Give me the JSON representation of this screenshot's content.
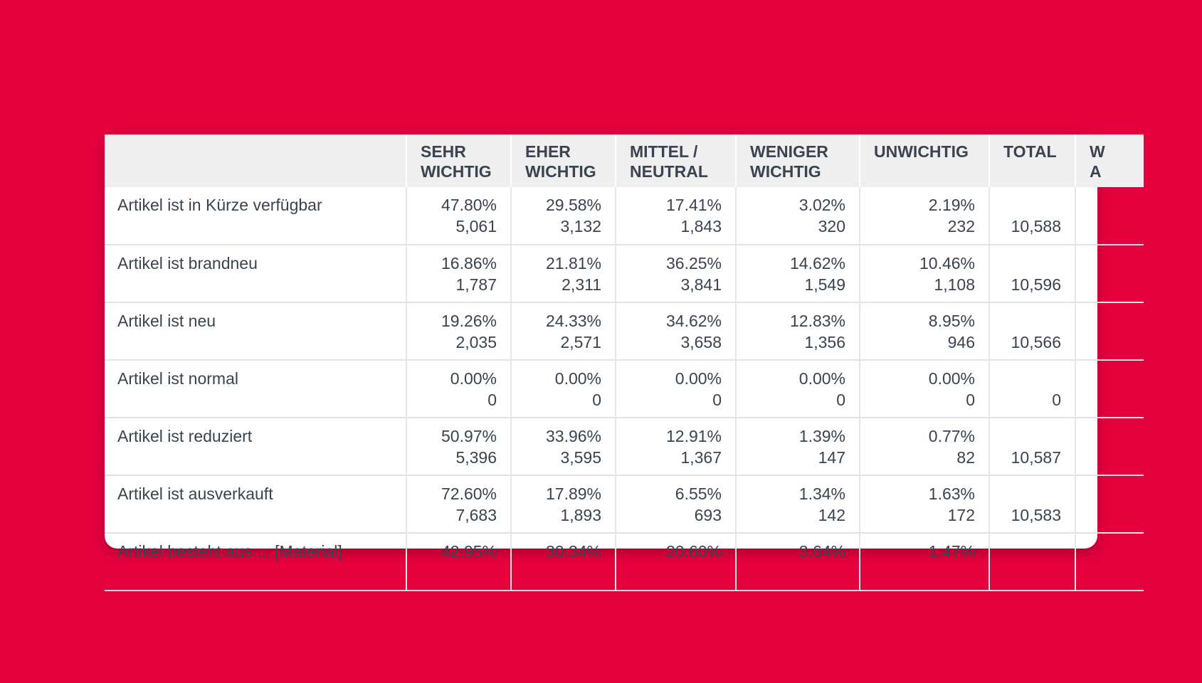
{
  "table": {
    "columns": [
      "",
      "SEHR\nWICHTIG",
      "EHER\nWICHTIG",
      "MITTEL /\nNEUTRAL",
      "WENIGER\nWICHTIG",
      "UNWICHTIG",
      "TOTAL",
      "W\nA"
    ],
    "header": {
      "c1_l1": "SEHR",
      "c1_l2": "WICHTIG",
      "c2_l1": "EHER",
      "c2_l2": "WICHTIG",
      "c3_l1": "MITTEL /",
      "c3_l2": "NEUTRAL",
      "c4_l1": "WENIGER",
      "c4_l2": "WICHTIG",
      "c5_l1": "UNWICHTIG",
      "c6_l1": "TOTAL",
      "c7_l1": "W",
      "c7_l2": "A"
    },
    "rows": [
      {
        "label": "Artikel ist in Kürze verfügbar",
        "cells": [
          {
            "pct": "47.80%",
            "cnt": "5,061"
          },
          {
            "pct": "29.58%",
            "cnt": "3,132"
          },
          {
            "pct": "17.41%",
            "cnt": "1,843"
          },
          {
            "pct": "3.02%",
            "cnt": "320"
          },
          {
            "pct": "2.19%",
            "cnt": "232"
          }
        ],
        "total": "10,588"
      },
      {
        "label": "Artikel ist brandneu",
        "cells": [
          {
            "pct": "16.86%",
            "cnt": "1,787"
          },
          {
            "pct": "21.81%",
            "cnt": "2,311"
          },
          {
            "pct": "36.25%",
            "cnt": "3,841"
          },
          {
            "pct": "14.62%",
            "cnt": "1,549"
          },
          {
            "pct": "10.46%",
            "cnt": "1,108"
          }
        ],
        "total": "10,596"
      },
      {
        "label": "Artikel ist neu",
        "cells": [
          {
            "pct": "19.26%",
            "cnt": "2,035"
          },
          {
            "pct": "24.33%",
            "cnt": "2,571"
          },
          {
            "pct": "34.62%",
            "cnt": "3,658"
          },
          {
            "pct": "12.83%",
            "cnt": "1,356"
          },
          {
            "pct": "8.95%",
            "cnt": "946"
          }
        ],
        "total": "10,566"
      },
      {
        "label": "Artikel ist normal",
        "cells": [
          {
            "pct": "0.00%",
            "cnt": "0"
          },
          {
            "pct": "0.00%",
            "cnt": "0"
          },
          {
            "pct": "0.00%",
            "cnt": "0"
          },
          {
            "pct": "0.00%",
            "cnt": "0"
          },
          {
            "pct": "0.00%",
            "cnt": "0"
          }
        ],
        "total": "0"
      },
      {
        "label": "Artikel ist reduziert",
        "cells": [
          {
            "pct": "50.97%",
            "cnt": "5,396"
          },
          {
            "pct": "33.96%",
            "cnt": "3,595"
          },
          {
            "pct": "12.91%",
            "cnt": "1,367"
          },
          {
            "pct": "1.39%",
            "cnt": "147"
          },
          {
            "pct": "0.77%",
            "cnt": "82"
          }
        ],
        "total": "10,587"
      },
      {
        "label": "Artikel ist ausverkauft",
        "cells": [
          {
            "pct": "72.60%",
            "cnt": "7,683"
          },
          {
            "pct": "17.89%",
            "cnt": "1,893"
          },
          {
            "pct": "6.55%",
            "cnt": "693"
          },
          {
            "pct": "1.34%",
            "cnt": "142"
          },
          {
            "pct": "1.63%",
            "cnt": "172"
          }
        ],
        "total": "10,583"
      },
      {
        "label": "Artikel besteht aus ... [Material]",
        "cells": [
          {
            "pct": "42.95%",
            "cnt": ""
          },
          {
            "pct": "30.34%",
            "cnt": ""
          },
          {
            "pct": "20.60%",
            "cnt": ""
          },
          {
            "pct": "3.64%",
            "cnt": ""
          },
          {
            "pct": "1.47%",
            "cnt": ""
          }
        ],
        "total": ""
      }
    ]
  },
  "colors": {
    "background": "#e5003e",
    "header_bg": "#efefef",
    "text": "#3a4350"
  }
}
